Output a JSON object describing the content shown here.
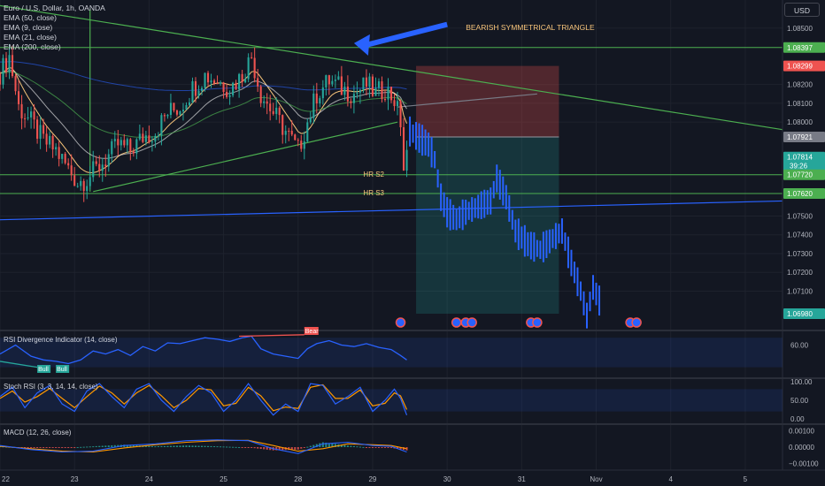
{
  "toolbar": {
    "currency": "USD"
  },
  "legend": [
    "Euro / U.S. Dollar, 1h, OANDA",
    "EMA (50, close)",
    "EMA (9, close)",
    "EMA (21, close)",
    "EMA (200, close)"
  ],
  "colors": {
    "background": "#131722",
    "up": "#26a69a",
    "down": "#ef5350",
    "projection": "#2962ff",
    "trendline": "#4caf50",
    "support": "#2962ff"
  },
  "annotations": {
    "pattern": "BEARISH SYMMETRICAL TRIANGLE",
    "hr_s2": "HR S2",
    "hr_s3": "HR S3"
  },
  "price_labels": [
    {
      "value": "1.08397",
      "price": 1.08397,
      "color": "#4caf50",
      "kind": "line"
    },
    {
      "value": "1.08299",
      "price": 1.08299,
      "color": "#ef5350",
      "kind": "stop"
    },
    {
      "value": "1.07921",
      "price": 1.07921,
      "color": "#787b86",
      "kind": "entry"
    },
    {
      "value": "1.07814",
      "sub": "39:26",
      "price": 1.07814,
      "color": "#26a69a",
      "kind": "last"
    },
    {
      "value": "1.07720",
      "price": 1.0772,
      "color": "#4caf50",
      "kind": "line"
    },
    {
      "value": "1.07620",
      "price": 1.0762,
      "color": "#4caf50",
      "kind": "line"
    },
    {
      "value": "1.06980",
      "price": 1.0698,
      "color": "#26a69a",
      "kind": "target"
    }
  ],
  "indicators": {
    "rsi": {
      "label": "RSI Divergence Indicator (14, close)",
      "ticks": [
        "60.00"
      ],
      "bull": "Bull",
      "bear": "Bear"
    },
    "stoch": {
      "label": "Stoch RSI (3, 3, 14, 14, close)",
      "ticks": [
        "100.00",
        "50.00",
        "0.00"
      ]
    },
    "macd": {
      "label": "MACD (12, 26, close)",
      "ticks": [
        "0.00100",
        "0.00000",
        "−0.00100"
      ]
    }
  },
  "chart_data": {
    "type": "candlestick",
    "symbol": "EURUSD",
    "timeframe": "1h",
    "price_axis": {
      "ticks": [
        "1.08500",
        "1.08200",
        "1.08100",
        "1.08000",
        "1.07500",
        "1.07400",
        "1.07300",
        "1.07200",
        "1.07100"
      ],
      "tick_values": [
        1.085,
        1.082,
        1.081,
        1.08,
        1.075,
        1.074,
        1.073,
        1.072,
        1.071
      ],
      "range": [
        1.069,
        1.0865
      ]
    },
    "time_axis": {
      "labels": [
        "22",
        "23",
        "24",
        "25",
        "28",
        "29",
        "30",
        "31",
        "Nov",
        "4",
        "5"
      ],
      "positions": [
        0,
        24,
        48,
        72,
        96,
        120,
        144,
        168,
        192,
        216,
        240
      ],
      "range": [
        0,
        252
      ]
    },
    "keypoints": [
      [
        0,
        1.0826
      ],
      [
        3,
        1.0835
      ],
      [
        6,
        1.0808
      ],
      [
        10,
        1.08
      ],
      [
        14,
        1.079
      ],
      [
        18,
        1.0785
      ],
      [
        22,
        1.0775
      ],
      [
        25,
        1.0768
      ],
      [
        28,
        1.077
      ],
      [
        31,
        1.0775
      ],
      [
        34,
        1.078
      ],
      [
        38,
        1.0788
      ],
      [
        42,
        1.0785
      ],
      [
        46,
        1.0792
      ],
      [
        50,
        1.0795
      ],
      [
        54,
        1.0805
      ],
      [
        58,
        1.0808
      ],
      [
        62,
        1.0818
      ],
      [
        66,
        1.0825
      ],
      [
        70,
        1.0822
      ],
      [
        74,
        1.0818
      ],
      [
        78,
        1.0825
      ],
      [
        81,
        1.0835
      ],
      [
        84,
        1.0815
      ],
      [
        88,
        1.0805
      ],
      [
        92,
        1.0795
      ],
      [
        96,
        1.0785
      ],
      [
        99,
        1.08
      ],
      [
        102,
        1.0815
      ],
      [
        106,
        1.0822
      ],
      [
        110,
        1.0818
      ],
      [
        114,
        1.0815
      ],
      [
        118,
        1.082
      ],
      [
        121,
        1.0815
      ],
      [
        124,
        1.0818
      ],
      [
        127,
        1.0812
      ],
      [
        129,
        1.08
      ],
      [
        130,
        1.0775
      ],
      [
        131,
        1.07814
      ]
    ],
    "projection": [
      [
        132,
        1.0795
      ],
      [
        138,
        1.0788
      ],
      [
        140,
        1.078
      ],
      [
        142,
        1.076
      ],
      [
        144,
        1.0752
      ],
      [
        147,
        1.0748
      ],
      [
        150,
        1.0752
      ],
      [
        154,
        1.0755
      ],
      [
        158,
        1.0758
      ],
      [
        160,
        1.077
      ],
      [
        163,
        1.076
      ],
      [
        166,
        1.0742
      ],
      [
        170,
        1.0735
      ],
      [
        174,
        1.0732
      ],
      [
        178,
        1.0738
      ],
      [
        181,
        1.0742
      ],
      [
        184,
        1.0725
      ],
      [
        187,
        1.071
      ],
      [
        189,
        1.0697
      ],
      [
        191,
        1.0712
      ],
      [
        193,
        1.0705
      ]
    ],
    "position_box": {
      "x_start": 134,
      "x_end": 180,
      "entry": 1.07921,
      "stop": 1.08299,
      "target": 1.0698
    },
    "horizontal_lines": [
      1.08397,
      1.0772,
      1.0762
    ],
    "trendlines": [
      {
        "from": [
          0,
          1.0862
        ],
        "to": [
          252,
          1.0796
        ],
        "color": "#4caf50"
      },
      {
        "from": [
          30,
          1.0763
        ],
        "to": [
          128,
          1.08
        ],
        "color": "#4caf50"
      },
      {
        "from": [
          0,
          1.0748
        ],
        "to": [
          252,
          1.0758
        ],
        "color": "#2962ff"
      },
      {
        "from": [
          128,
          1.0808
        ],
        "to": [
          173,
          1.0815
        ],
        "color": "#787b86"
      }
    ],
    "vertical_line": {
      "x": 29,
      "from": 1.086,
      "to": 1.0763
    },
    "arrow": {
      "from": [
        144,
        1.0852
      ],
      "to": [
        114,
        1.0842
      ]
    },
    "rsi_line": [
      [
        0,
        48
      ],
      [
        5,
        60
      ],
      [
        10,
        45
      ],
      [
        14,
        40
      ],
      [
        18,
        38
      ],
      [
        22,
        35
      ],
      [
        26,
        40
      ],
      [
        30,
        52
      ],
      [
        34,
        48
      ],
      [
        38,
        54
      ],
      [
        42,
        46
      ],
      [
        46,
        58
      ],
      [
        50,
        52
      ],
      [
        54,
        63
      ],
      [
        58,
        62
      ],
      [
        62,
        66
      ],
      [
        66,
        70
      ],
      [
        70,
        68
      ],
      [
        74,
        65
      ],
      [
        78,
        70
      ],
      [
        81,
        72
      ],
      [
        84,
        55
      ],
      [
        88,
        48
      ],
      [
        92,
        45
      ],
      [
        96,
        42
      ],
      [
        99,
        55
      ],
      [
        102,
        62
      ],
      [
        106,
        66
      ],
      [
        110,
        60
      ],
      [
        114,
        58
      ],
      [
        118,
        62
      ],
      [
        122,
        57
      ],
      [
        126,
        54
      ],
      [
        129,
        46
      ],
      [
        131,
        40
      ]
    ],
    "rsi_range": [
      20,
      75
    ],
    "stoch_k": [
      [
        0,
        60
      ],
      [
        4,
        85
      ],
      [
        8,
        30
      ],
      [
        12,
        70
      ],
      [
        16,
        90
      ],
      [
        20,
        40
      ],
      [
        24,
        20
      ],
      [
        28,
        75
      ],
      [
        32,
        95
      ],
      [
        36,
        60
      ],
      [
        40,
        30
      ],
      [
        44,
        80
      ],
      [
        48,
        95
      ],
      [
        52,
        50
      ],
      [
        56,
        20
      ],
      [
        60,
        60
      ],
      [
        64,
        90
      ],
      [
        68,
        70
      ],
      [
        72,
        20
      ],
      [
        76,
        50
      ],
      [
        80,
        95
      ],
      [
        84,
        50
      ],
      [
        88,
        10
      ],
      [
        92,
        40
      ],
      [
        96,
        20
      ],
      [
        100,
        95
      ],
      [
        104,
        90
      ],
      [
        108,
        40
      ],
      [
        112,
        60
      ],
      [
        116,
        85
      ],
      [
        120,
        20
      ],
      [
        124,
        50
      ],
      [
        127,
        80
      ],
      [
        129,
        55
      ],
      [
        131,
        10
      ]
    ],
    "stoch_d": [
      [
        0,
        55
      ],
      [
        4,
        75
      ],
      [
        8,
        45
      ],
      [
        12,
        60
      ],
      [
        16,
        82
      ],
      [
        20,
        55
      ],
      [
        24,
        30
      ],
      [
        28,
        60
      ],
      [
        32,
        88
      ],
      [
        36,
        70
      ],
      [
        40,
        40
      ],
      [
        44,
        70
      ],
      [
        48,
        90
      ],
      [
        52,
        62
      ],
      [
        56,
        30
      ],
      [
        60,
        50
      ],
      [
        64,
        82
      ],
      [
        68,
        78
      ],
      [
        72,
        35
      ],
      [
        76,
        42
      ],
      [
        80,
        85
      ],
      [
        84,
        62
      ],
      [
        88,
        22
      ],
      [
        92,
        32
      ],
      [
        96,
        28
      ],
      [
        100,
        85
      ],
      [
        104,
        92
      ],
      [
        108,
        55
      ],
      [
        112,
        55
      ],
      [
        116,
        78
      ],
      [
        120,
        35
      ],
      [
        124,
        42
      ],
      [
        127,
        70
      ],
      [
        129,
        62
      ],
      [
        131,
        25
      ]
    ],
    "macd_line": [
      [
        0,
        0.0001
      ],
      [
        10,
        -0.00015
      ],
      [
        20,
        -0.0003
      ],
      [
        30,
        -0.00025
      ],
      [
        40,
        0.0001
      ],
      [
        50,
        0.0002
      ],
      [
        60,
        0.0004
      ],
      [
        70,
        0.00045
      ],
      [
        80,
        0.0004
      ],
      [
        88,
        -0.0001
      ],
      [
        96,
        -0.0004
      ],
      [
        104,
        0.0002
      ],
      [
        112,
        0.0003
      ],
      [
        120,
        0.0001
      ],
      [
        126,
        5e-05
      ],
      [
        131,
        -0.0003
      ]
    ],
    "macd_signal": [
      [
        0,
        5e-05
      ],
      [
        10,
        -0.0001
      ],
      [
        20,
        -0.00025
      ],
      [
        30,
        -0.0003
      ],
      [
        40,
        -5e-05
      ],
      [
        50,
        0.00015
      ],
      [
        60,
        0.0003
      ],
      [
        70,
        0.0004
      ],
      [
        80,
        0.00042
      ],
      [
        88,
        0.0001
      ],
      [
        96,
        -0.00025
      ],
      [
        104,
        -0.0001
      ],
      [
        112,
        0.0002
      ],
      [
        120,
        0.00015
      ],
      [
        126,
        0.0001
      ],
      [
        131,
        -0.0001
      ]
    ]
  }
}
